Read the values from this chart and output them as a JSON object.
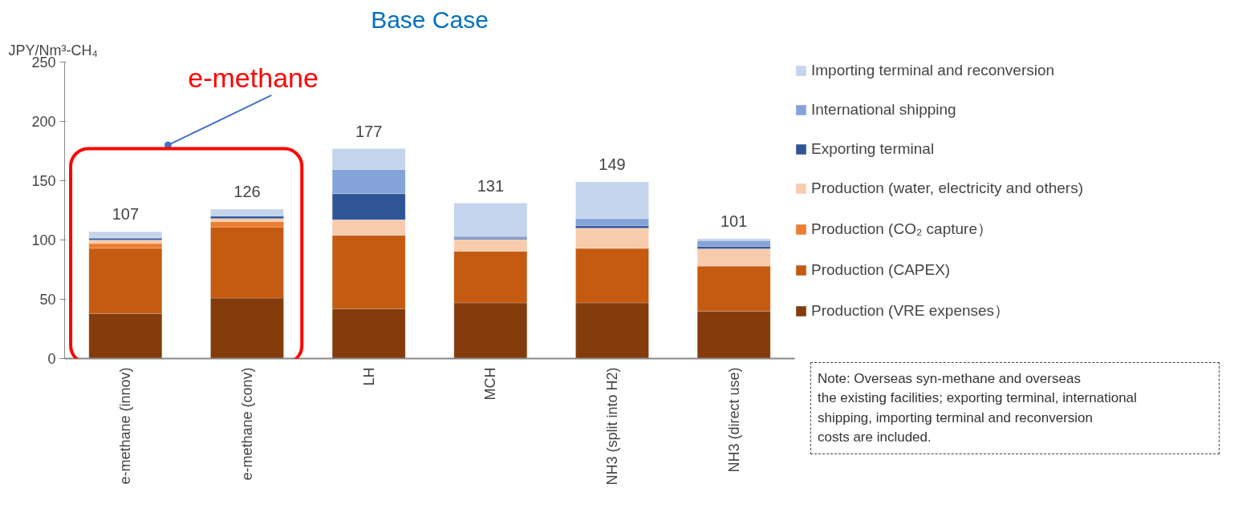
{
  "chart_data": {
    "type": "bar",
    "stacked": true,
    "title": "Base Case",
    "ylabel": "JPY/Nm³-CH₄",
    "categories": [
      "e-methane (innov)",
      "e-methane (conv)",
      "LH",
      "MCH",
      "NH3 (split into H2)",
      "NH3 (direct use)"
    ],
    "series": [
      {
        "name": "Production (VRE expenses）",
        "color": "#843c0c",
        "values": [
          38,
          51,
          42,
          47,
          47,
          40
        ]
      },
      {
        "name": "Production (CAPEX)",
        "color": "#c55a11",
        "values": [
          55,
          60,
          62,
          43.5,
          46,
          38
        ]
      },
      {
        "name": "Production (CO₂ capture）",
        "color": "#ed7d31",
        "values": [
          4,
          4.5,
          0,
          0,
          0,
          0
        ]
      },
      {
        "name": "Production (water, electricity and others)",
        "color": "#f8cbad",
        "values": [
          3,
          2.5,
          13,
          10,
          17,
          14.5
        ]
      },
      {
        "name": "Exporting terminal",
        "color": "#2f5597",
        "values": [
          1.5,
          2,
          22,
          1,
          2,
          2
        ]
      },
      {
        "name": "International shipping",
        "color": "#84a3d8",
        "values": [
          0.5,
          0.5,
          20.5,
          1.5,
          6,
          5
        ]
      },
      {
        "name": "Importing terminal and reconversion",
        "color": "#c4d4ed",
        "values": [
          5,
          5.5,
          17.5,
          28,
          31,
          1.5
        ]
      }
    ],
    "totals": [
      "107",
      "126",
      "177",
      "131",
      "149",
      "101"
    ],
    "ylim": [
      0,
      250
    ],
    "yticks": [
      0,
      50,
      100,
      150,
      200,
      250
    ],
    "grid": false,
    "legend": "right",
    "annotations": [
      "e-methane",
      "Note: Overseas syn-methane and overseas\nthe existing facilities; exporting terminal, international\nshipping, importing terminal and reconversion\ncosts are included."
    ]
  }
}
